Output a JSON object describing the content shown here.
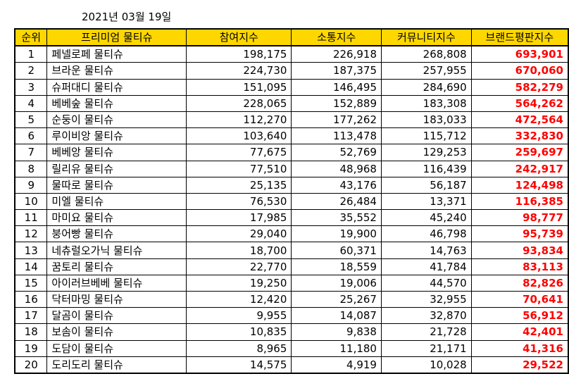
{
  "date": "2021년 03월 19일",
  "columns": [
    "순위",
    "프리미엄 물티슈",
    "참여지수",
    "소통지수",
    "커뮤니티지수",
    "브랜드평판지수"
  ],
  "rows": [
    [
      "1",
      "페넬로페 물티슈",
      "198,175",
      "226,918",
      "268,808",
      "693,901"
    ],
    [
      "2",
      "브라운 물티슈",
      "224,730",
      "187,375",
      "257,955",
      "670,060"
    ],
    [
      "3",
      "슈퍼대디 물티슈",
      "151,095",
      "146,495",
      "284,690",
      "582,279"
    ],
    [
      "4",
      "베베숲 물티슈",
      "228,065",
      "152,889",
      "183,308",
      "564,262"
    ],
    [
      "5",
      "순둥이 물티슈",
      "112,270",
      "177,262",
      "183,033",
      "472,564"
    ],
    [
      "6",
      "루이비앙 물티슈",
      "103,640",
      "113,478",
      "115,712",
      "332,830"
    ],
    [
      "7",
      "베베앙 물티슈",
      "77,675",
      "52,769",
      "129,253",
      "259,697"
    ],
    [
      "8",
      "릴리유 물티슈",
      "77,510",
      "48,968",
      "116,439",
      "242,917"
    ],
    [
      "9",
      "물따로 물티슈",
      "25,135",
      "43,176",
      "56,187",
      "124,498"
    ],
    [
      "10",
      "미엘 물티슈",
      "76,530",
      "26,484",
      "13,371",
      "116,385"
    ],
    [
      "11",
      "마미요 물티슈",
      "17,985",
      "35,552",
      "45,240",
      "98,777"
    ],
    [
      "12",
      "붕어빵 물티슈",
      "29,040",
      "19,900",
      "46,798",
      "95,739"
    ],
    [
      "13",
      "네츄럴오가닉 물티슈",
      "18,700",
      "60,371",
      "14,763",
      "93,834"
    ],
    [
      "14",
      "꿈토리 물티슈",
      "22,770",
      "18,559",
      "41,784",
      "83,113"
    ],
    [
      "15",
      "아이러브베베 물티슈",
      "19,250",
      "19,006",
      "44,570",
      "82,826"
    ],
    [
      "16",
      "닥터마밍 물티슈",
      "12,420",
      "25,267",
      "32,955",
      "70,641"
    ],
    [
      "17",
      "달곰이 물티슈",
      "9,955",
      "14,087",
      "32,870",
      "56,912"
    ],
    [
      "18",
      "보솜이 물티슈",
      "10,835",
      "9,838",
      "21,728",
      "42,401"
    ],
    [
      "19",
      "도담이 물티슈",
      "8,965",
      "11,180",
      "21,171",
      "41,316"
    ],
    [
      "20",
      "도리도리 물티슈",
      "14,575",
      "4,919",
      "10,028",
      "29,522"
    ]
  ],
  "colors": {
    "header_bg": "#ffd700",
    "brand_value": "#ff0000"
  }
}
